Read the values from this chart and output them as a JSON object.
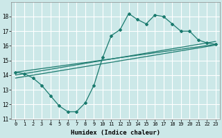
{
  "xlabel": "Humidex (Indice chaleur)",
  "background_color": "#cce8e8",
  "grid_color": "#ffffff",
  "line_color": "#1a7a6e",
  "xlim": [
    -0.5,
    23.5
  ],
  "ylim": [
    11,
    19
  ],
  "yticks": [
    11,
    12,
    13,
    14,
    15,
    16,
    17,
    18
  ],
  "xticks": [
    0,
    1,
    2,
    3,
    4,
    5,
    6,
    7,
    8,
    9,
    10,
    11,
    12,
    13,
    14,
    15,
    16,
    17,
    18,
    19,
    20,
    21,
    22,
    23
  ],
  "main_line_x": [
    0,
    1,
    2,
    3,
    4,
    5,
    6,
    7,
    8,
    9,
    10,
    11,
    12,
    13,
    14,
    15,
    16,
    17,
    18,
    19,
    20,
    21,
    22,
    23
  ],
  "main_line_y": [
    14.2,
    14.1,
    13.8,
    13.3,
    12.6,
    11.9,
    11.5,
    11.5,
    12.1,
    13.3,
    15.2,
    16.7,
    17.1,
    18.2,
    17.8,
    17.5,
    18.1,
    18.0,
    17.5,
    17.0,
    17.0,
    16.4,
    16.2,
    16.1
  ],
  "line2_x": [
    0,
    23
  ],
  "line2_y": [
    14.2,
    16.1
  ],
  "line3_x": [
    0,
    23
  ],
  "line3_y": [
    14.0,
    16.3
  ],
  "line4_x": [
    0,
    23
  ],
  "line4_y": [
    13.8,
    16.05
  ]
}
